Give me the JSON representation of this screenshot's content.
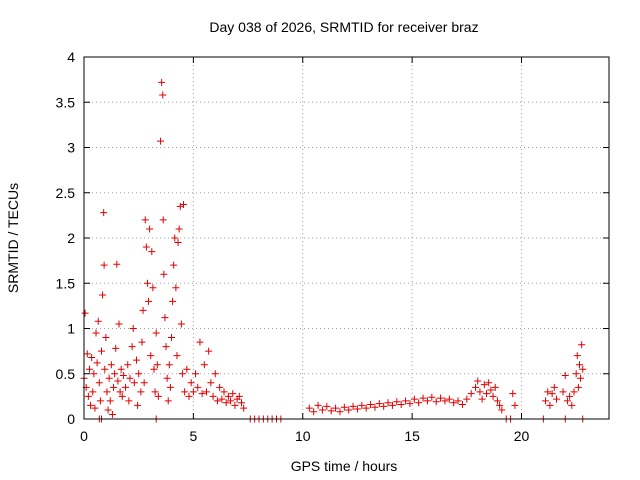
{
  "chart_data": {
    "type": "scatter",
    "title": "Day 038 of 2026, SRMTID for receiver braz",
    "xlabel": "GPS time / hours",
    "ylabel": "SRMTID / TECUs",
    "xlim": [
      0,
      24
    ],
    "ylim": [
      0,
      4
    ],
    "xticks": [
      0,
      5,
      10,
      15,
      20
    ],
    "yticks": [
      0,
      0.5,
      1,
      1.5,
      2,
      2.5,
      3,
      3.5,
      4
    ],
    "xtick_labels": [
      "0",
      "5",
      "10",
      "15",
      "20"
    ],
    "ytick_labels": [
      "0",
      "0.5",
      "1",
      "1.5",
      "2",
      "2.5",
      "3",
      "3.5",
      "4"
    ],
    "grid": true,
    "marker": "+",
    "color": "#e00000",
    "series": [
      {
        "name": "braz",
        "points": [
          [
            0.0,
            0.45
          ],
          [
            0.05,
            1.17
          ],
          [
            0.1,
            0.35
          ],
          [
            0.15,
            0.72
          ],
          [
            0.2,
            0.25
          ],
          [
            0.25,
            0.55
          ],
          [
            0.3,
            0.15
          ],
          [
            0.35,
            0.68
          ],
          [
            0.4,
            0.3
          ],
          [
            0.45,
            0.5
          ],
          [
            0.5,
            0.12
          ],
          [
            0.55,
            0.95
          ],
          [
            0.6,
            0.62
          ],
          [
            0.65,
            1.08
          ],
          [
            0.7,
            0.4
          ],
          [
            0.75,
            0.2
          ],
          [
            0.8,
            0.75
          ],
          [
            0.85,
            1.37
          ],
          [
            0.9,
            2.28
          ],
          [
            0.92,
            1.7
          ],
          [
            0.95,
            0.55
          ],
          [
            1.0,
            0.9
          ],
          [
            1.05,
            0.3
          ],
          [
            1.1,
            0.1
          ],
          [
            1.15,
            0.45
          ],
          [
            1.2,
            0.2
          ],
          [
            1.25,
            0.6
          ],
          [
            1.3,
            0.05
          ],
          [
            1.35,
            0.35
          ],
          [
            1.4,
            0.5
          ],
          [
            1.45,
            0.78
          ],
          [
            1.5,
            1.71
          ],
          [
            1.55,
            0.42
          ],
          [
            1.6,
            1.05
          ],
          [
            1.65,
            0.3
          ],
          [
            1.7,
            0.55
          ],
          [
            1.75,
            0.25
          ],
          [
            1.8,
            0.48
          ],
          [
            1.9,
            0.35
          ],
          [
            2.0,
            0.6
          ],
          [
            2.05,
            0.2
          ],
          [
            2.1,
            0.45
          ],
          [
            2.2,
            0.8
          ],
          [
            2.25,
            1.0
          ],
          [
            2.3,
            0.4
          ],
          [
            2.4,
            0.65
          ],
          [
            2.45,
            0.15
          ],
          [
            2.5,
            0.5
          ],
          [
            2.6,
            0.3
          ],
          [
            2.65,
            0.85
          ],
          [
            2.7,
            1.2
          ],
          [
            2.75,
            0.4
          ],
          [
            2.8,
            2.2
          ],
          [
            2.85,
            1.9
          ],
          [
            2.9,
            1.5
          ],
          [
            2.95,
            1.3
          ],
          [
            3.0,
            2.1
          ],
          [
            3.05,
            0.7
          ],
          [
            3.1,
            1.85
          ],
          [
            3.15,
            1.45
          ],
          [
            3.2,
            0.55
          ],
          [
            3.25,
            0.3
          ],
          [
            3.3,
            0.95
          ],
          [
            3.35,
            0.6
          ],
          [
            3.4,
            0.25
          ],
          [
            3.5,
            3.07
          ],
          [
            3.55,
            3.72
          ],
          [
            3.6,
            3.58
          ],
          [
            3.62,
            2.2
          ],
          [
            3.65,
            1.6
          ],
          [
            3.7,
            1.12
          ],
          [
            3.75,
            0.8
          ],
          [
            3.8,
            0.45
          ],
          [
            3.85,
            0.2
          ],
          [
            3.9,
            0.6
          ],
          [
            3.95,
            0.35
          ],
          [
            4.0,
            0.9
          ],
          [
            4.05,
            1.3
          ],
          [
            4.1,
            1.7
          ],
          [
            4.15,
            2.0
          ],
          [
            4.2,
            1.45
          ],
          [
            4.25,
            0.7
          ],
          [
            4.3,
            1.95
          ],
          [
            4.35,
            2.1
          ],
          [
            4.4,
            2.35
          ],
          [
            4.45,
            1.05
          ],
          [
            4.5,
            0.5
          ],
          [
            4.55,
            2.37
          ],
          [
            4.6,
            0.3
          ],
          [
            4.7,
            0.55
          ],
          [
            4.8,
            0.25
          ],
          [
            4.9,
            0.4
          ],
          [
            5.0,
            0.3
          ],
          [
            5.1,
            0.5
          ],
          [
            5.2,
            0.35
          ],
          [
            5.3,
            0.85
          ],
          [
            5.4,
            0.28
          ],
          [
            5.5,
            0.6
          ],
          [
            5.6,
            0.3
          ],
          [
            5.7,
            0.75
          ],
          [
            5.8,
            0.4
          ],
          [
            5.9,
            0.25
          ],
          [
            6.0,
            0.5
          ],
          [
            6.1,
            0.2
          ],
          [
            6.2,
            0.35
          ],
          [
            6.3,
            0.22
          ],
          [
            6.4,
            0.3
          ],
          [
            6.5,
            0.18
          ],
          [
            6.6,
            0.25
          ],
          [
            6.7,
            0.2
          ],
          [
            6.8,
            0.28
          ],
          [
            6.9,
            0.15
          ],
          [
            7.0,
            0.22
          ],
          [
            7.1,
            0.25
          ],
          [
            7.2,
            0.18
          ],
          [
            7.3,
            0.12
          ],
          [
            0.7,
            0.0
          ],
          [
            0.8,
            0.0
          ],
          [
            3.3,
            0.0
          ],
          [
            7.6,
            0.0
          ],
          [
            7.8,
            0.0
          ],
          [
            8.0,
            0.0
          ],
          [
            8.2,
            0.0
          ],
          [
            8.4,
            0.0
          ],
          [
            8.6,
            0.0
          ],
          [
            8.8,
            0.0
          ],
          [
            9.0,
            0.0
          ],
          [
            19.3,
            0.0
          ],
          [
            19.5,
            0.0
          ],
          [
            21.0,
            0.0
          ],
          [
            22.0,
            0.0
          ],
          [
            22.8,
            0.0
          ],
          [
            10.3,
            0.12
          ],
          [
            10.5,
            0.08
          ],
          [
            10.7,
            0.15
          ],
          [
            10.9,
            0.1
          ],
          [
            11.1,
            0.14
          ],
          [
            11.3,
            0.09
          ],
          [
            11.5,
            0.12
          ],
          [
            11.7,
            0.08
          ],
          [
            11.9,
            0.13
          ],
          [
            12.1,
            0.1
          ],
          [
            12.3,
            0.14
          ],
          [
            12.5,
            0.11
          ],
          [
            12.7,
            0.15
          ],
          [
            12.9,
            0.12
          ],
          [
            13.1,
            0.16
          ],
          [
            13.3,
            0.13
          ],
          [
            13.5,
            0.17
          ],
          [
            13.7,
            0.14
          ],
          [
            13.9,
            0.18
          ],
          [
            14.1,
            0.15
          ],
          [
            14.3,
            0.19
          ],
          [
            14.5,
            0.16
          ],
          [
            14.7,
            0.2
          ],
          [
            14.9,
            0.17
          ],
          [
            15.1,
            0.22
          ],
          [
            15.3,
            0.18
          ],
          [
            15.5,
            0.23
          ],
          [
            15.7,
            0.2
          ],
          [
            15.9,
            0.24
          ],
          [
            16.1,
            0.19
          ],
          [
            16.3,
            0.23
          ],
          [
            16.5,
            0.2
          ],
          [
            16.7,
            0.22
          ],
          [
            16.9,
            0.18
          ],
          [
            17.1,
            0.2
          ],
          [
            17.3,
            0.16
          ],
          [
            17.5,
            0.22
          ],
          [
            17.7,
            0.28
          ],
          [
            17.9,
            0.35
          ],
          [
            18.0,
            0.42
          ],
          [
            18.1,
            0.3
          ],
          [
            18.2,
            0.22
          ],
          [
            18.3,
            0.38
          ],
          [
            18.4,
            0.28
          ],
          [
            18.5,
            0.4
          ],
          [
            18.6,
            0.32
          ],
          [
            18.7,
            0.25
          ],
          [
            18.8,
            0.35
          ],
          [
            18.9,
            0.2
          ],
          [
            19.0,
            0.15
          ],
          [
            19.1,
            0.1
          ],
          [
            19.6,
            0.28
          ],
          [
            19.7,
            0.15
          ],
          [
            21.1,
            0.2
          ],
          [
            21.2,
            0.3
          ],
          [
            21.3,
            0.15
          ],
          [
            21.4,
            0.28
          ],
          [
            21.5,
            0.35
          ],
          [
            21.6,
            0.22
          ],
          [
            21.9,
            0.3
          ],
          [
            22.0,
            0.48
          ],
          [
            22.1,
            0.2
          ],
          [
            22.2,
            0.25
          ],
          [
            22.3,
            0.15
          ],
          [
            22.4,
            0.3
          ],
          [
            22.5,
            0.5
          ],
          [
            22.55,
            0.7
          ],
          [
            22.6,
            0.35
          ],
          [
            22.65,
            0.6
          ],
          [
            22.7,
            0.45
          ],
          [
            22.75,
            0.82
          ],
          [
            22.8,
            0.55
          ]
        ]
      }
    ]
  }
}
